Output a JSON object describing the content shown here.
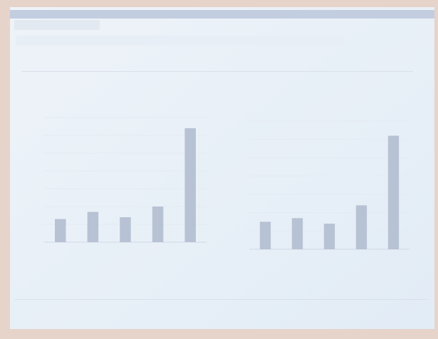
{
  "chart_data": [
    {
      "type": "bar",
      "values": [
        1.3,
        1.7,
        1.4,
        2.0,
        6.4
      ],
      "color": "#b7c2d4",
      "ylim": [
        0,
        7
      ],
      "grid": true
    },
    {
      "type": "bar",
      "values": [
        1.5,
        1.7,
        1.4,
        2.4,
        6.2
      ],
      "color": "#b7c2d4",
      "ylim": [
        0,
        7
      ],
      "grid": true
    }
  ]
}
